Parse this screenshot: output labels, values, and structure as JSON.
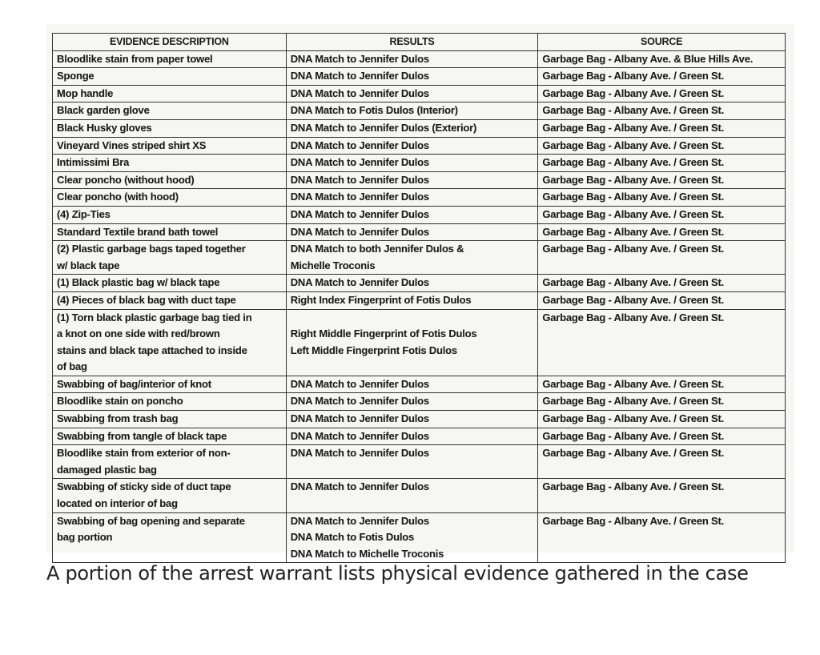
{
  "table": {
    "headers": [
      "EVIDENCE DESCRIPTION",
      "RESULTS",
      "SOURCE"
    ],
    "rows": [
      [
        [
          "Bloodlike stain from paper towel"
        ],
        [
          "DNA Match to Jennifer Dulos"
        ],
        [
          "Garbage Bag - Albany Ave. & Blue Hills Ave."
        ]
      ],
      [
        [
          "Sponge"
        ],
        [
          "DNA Match to Jennifer Dulos"
        ],
        [
          "Garbage Bag - Albany Ave. / Green St."
        ]
      ],
      [
        [
          "Mop handle"
        ],
        [
          "DNA Match to Jennifer Dulos"
        ],
        [
          "Garbage Bag - Albany Ave. / Green St."
        ]
      ],
      [
        [
          "Black garden glove"
        ],
        [
          "DNA Match to Fotis Dulos (Interior)"
        ],
        [
          "Garbage Bag - Albany Ave. / Green St."
        ]
      ],
      [
        [
          "Black Husky gloves"
        ],
        [
          "DNA Match to Jennifer Dulos (Exterior)"
        ],
        [
          "Garbage Bag - Albany Ave. / Green St."
        ]
      ],
      [
        [
          "Vineyard Vines striped shirt XS"
        ],
        [
          "DNA Match to Jennifer Dulos"
        ],
        [
          "Garbage Bag - Albany Ave. / Green St."
        ]
      ],
      [
        [
          "Intimissimi Bra"
        ],
        [
          "DNA Match to Jennifer Dulos"
        ],
        [
          "Garbage Bag - Albany Ave. / Green St."
        ]
      ],
      [
        [
          "Clear poncho (without hood)"
        ],
        [
          "DNA Match to Jennifer Dulos"
        ],
        [
          "Garbage Bag - Albany Ave. / Green St."
        ]
      ],
      [
        [
          "Clear poncho (with hood)"
        ],
        [
          "DNA Match to Jennifer Dulos"
        ],
        [
          "Garbage Bag - Albany Ave. / Green St."
        ]
      ],
      [
        [
          "(4) Zip-Ties"
        ],
        [
          "DNA Match to Jennifer Dulos"
        ],
        [
          "Garbage Bag - Albany Ave. / Green St."
        ]
      ],
      [
        [
          "Standard Textile brand bath towel"
        ],
        [
          "DNA Match to Jennifer Dulos"
        ],
        [
          "Garbage Bag - Albany Ave. / Green St."
        ]
      ],
      [
        [
          "(2) Plastic garbage bags taped together",
          "w/ black tape"
        ],
        [
          "DNA Match to both Jennifer Dulos  &",
          "Michelle Troconis"
        ],
        [
          "Garbage Bag - Albany Ave. / Green St."
        ]
      ],
      [
        [
          "(1) Black plastic bag w/ black tape"
        ],
        [
          "DNA Match to Jennifer Dulos"
        ],
        [
          "Garbage Bag - Albany Ave. / Green St."
        ]
      ],
      [
        [
          "(4) Pieces of black bag with duct tape"
        ],
        [
          "Right Index Fingerprint of Fotis Dulos"
        ],
        [
          "Garbage Bag - Albany Ave. / Green St."
        ]
      ],
      [
        [
          "(1) Torn black plastic garbage bag tied in",
          "a knot on one side with red/brown",
          "stains and black tape attached to inside",
          "of bag"
        ],
        [
          "Right Middle Fingerprint of Fotis Dulos",
          "Left Middle Fingerprint Fotis Dulos"
        ],
        [
          "Garbage Bag - Albany Ave. / Green St."
        ]
      ],
      [
        [
          "Swabbing of bag/interior of knot"
        ],
        [
          "DNA Match to Jennifer Dulos"
        ],
        [
          "Garbage Bag - Albany Ave. / Green St."
        ]
      ],
      [
        [
          "Bloodlike stain on poncho"
        ],
        [
          "DNA Match to Jennifer Dulos"
        ],
        [
          "Garbage Bag - Albany Ave. / Green St."
        ]
      ],
      [
        [
          "Swabbing from trash bag"
        ],
        [
          "DNA Match to Jennifer Dulos"
        ],
        [
          "Garbage Bag - Albany Ave. / Green St."
        ]
      ],
      [
        [
          "Swabbing from tangle of black tape"
        ],
        [
          "DNA Match to Jennifer Dulos"
        ],
        [
          "Garbage Bag - Albany Ave. / Green St."
        ]
      ],
      [
        [
          "Bloodlike stain from exterior of non-",
          "damaged plastic bag"
        ],
        [
          "DNA Match to Jennifer Dulos"
        ],
        [
          "Garbage Bag - Albany Ave. / Green St."
        ]
      ],
      [
        [
          "Swabbing of sticky side of duct tape",
          "located on interior of bag"
        ],
        [
          "DNA Match to Jennifer Dulos"
        ],
        [
          "Garbage Bag - Albany Ave. / Green St."
        ]
      ],
      [
        [
          "Swabbing of bag opening and separate",
          "bag portion"
        ],
        [
          "DNA Match to Jennifer Dulos",
          "DNA Match to Fotis Dulos",
          "DNA Match to  Michelle Troconis"
        ],
        [
          "Garbage Bag - Albany Ave. / Green St."
        ]
      ]
    ]
  },
  "caption": "A portion of the arrest warrant lists physical evidence gathered in the case"
}
